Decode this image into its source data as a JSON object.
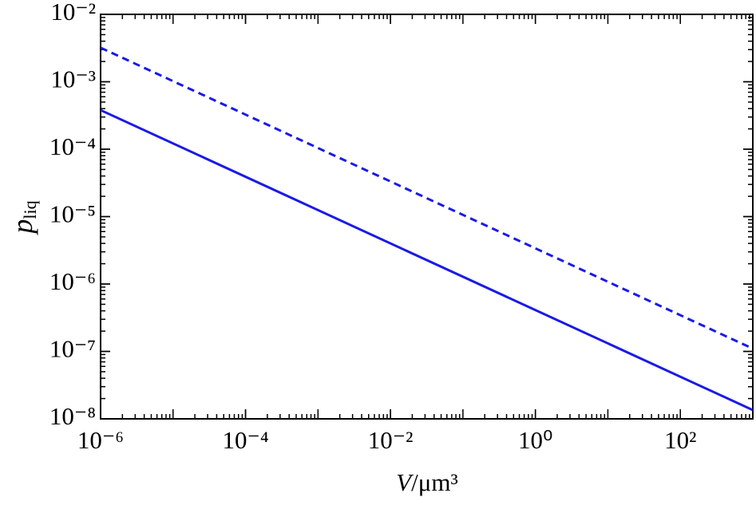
{
  "chart_data": {
    "type": "line",
    "xlabel": {
      "symbol": "V",
      "unit": "/μm³"
    },
    "ylabel": {
      "symbol": "p",
      "subscript": "liq"
    },
    "x": [
      1e-06,
      1000
    ],
    "series": [
      {
        "color": "#1a1ae6",
        "linestyle": "solid",
        "values": [
          0.00038,
          1.35e-08
        ]
      },
      {
        "color": "#1a1ae6",
        "linestyle": "dashed",
        "values": [
          0.0032,
          1.1e-07
        ]
      }
    ],
    "log_x": true,
    "log_y": true,
    "minor_ticks": true,
    "xlim": [
      1e-06,
      1000
    ],
    "ylim": [
      1e-08,
      0.01
    ],
    "xticks": [
      {
        "value": 1e-06,
        "label": "10⁻⁶"
      },
      {
        "value": 0.0001,
        "label": "10⁻⁴"
      },
      {
        "value": 0.01,
        "label": "10⁻²"
      },
      {
        "value": 1,
        "label": "10⁰"
      },
      {
        "value": 100,
        "label": "10²"
      }
    ],
    "yticks": [
      {
        "value": 1e-08,
        "label": "10⁻⁸"
      },
      {
        "value": 1e-07,
        "label": "10⁻⁷"
      },
      {
        "value": 1e-06,
        "label": "10⁻⁶"
      },
      {
        "value": 1e-05,
        "label": "10⁻⁵"
      },
      {
        "value": 0.0001,
        "label": "10⁻⁴"
      },
      {
        "value": 0.001,
        "label": "10⁻³"
      },
      {
        "value": 0.01,
        "label": "10⁻²"
      }
    ]
  }
}
